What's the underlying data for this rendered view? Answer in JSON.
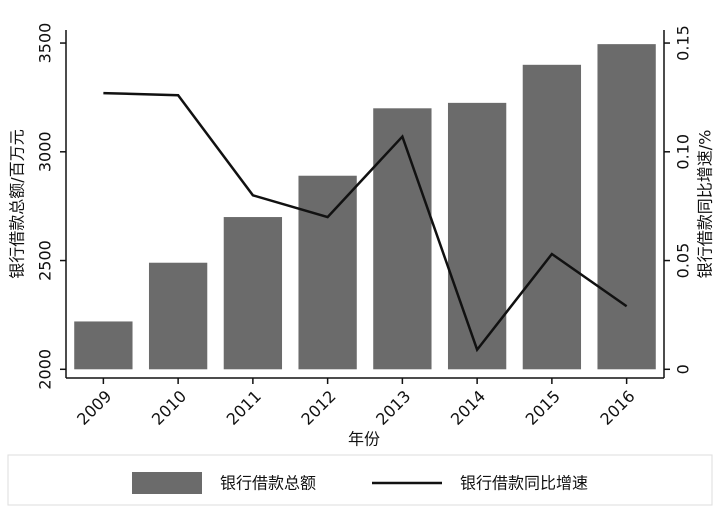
{
  "chart_data": {
    "type": "bar",
    "categories": [
      "2009",
      "2010",
      "2011",
      "2012",
      "2013",
      "2014",
      "2015",
      "2016"
    ],
    "x_label": "年份",
    "y_label": "银行借款总额/百万元",
    "y2_label": "银行借款同比增速/%",
    "series": [
      {
        "name": "银行借款总额",
        "type": "bar",
        "color": "#6b6b6b",
        "values": [
          2220,
          2490,
          2700,
          2890,
          3200,
          3225,
          3400,
          3495
        ]
      },
      {
        "name": "银行借款同比增速",
        "type": "line",
        "axis": "y2",
        "color": "#111111",
        "values": [
          0.127,
          0.126,
          0.08,
          0.07,
          0.107,
          0.009,
          0.053,
          0.029
        ]
      }
    ],
    "ylim": [
      1960,
      3560
    ],
    "yticks": [
      2000,
      2500,
      3000,
      3500
    ],
    "y2lim": [
      -0.004,
      0.156
    ],
    "y2ticks": [
      0,
      0.05,
      {
        "value": 0.1,
        "label": "0.10"
      },
      0.15
    ],
    "legend": "bottom"
  }
}
